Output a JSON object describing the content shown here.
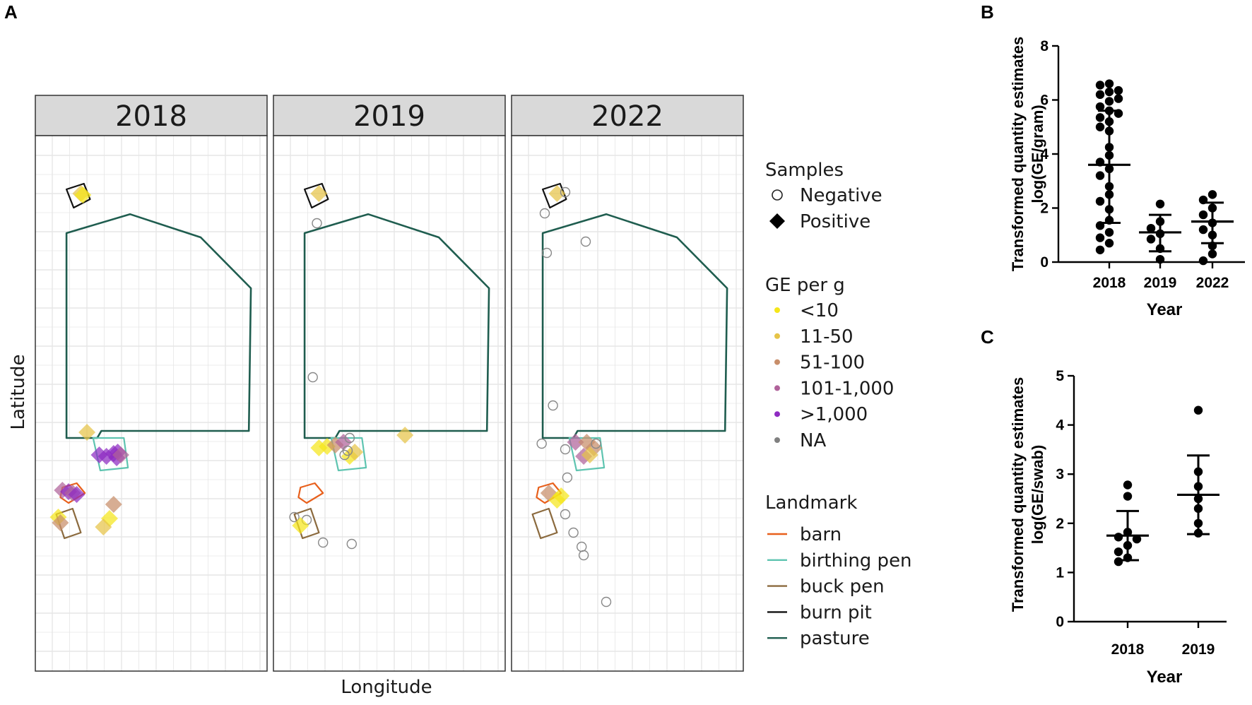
{
  "panel_letters": {
    "a": "A",
    "b": "B",
    "c": "C"
  },
  "colors": {
    "ge": {
      "<10": "#f5e61a",
      "11-50": "#e6c448",
      "51-100": "#c88e6a",
      "101-1,000": "#b0629a",
      ">1,000": "#8e2bc2",
      "NA": "#808080"
    },
    "landmark": {
      "barn": "#e8601c",
      "birthing pen": "#5ec4b0",
      "buck pen": "#8b6a3e",
      "burn pit": "#111111",
      "pasture": "#1f5d4f"
    },
    "negative": "#888888",
    "strip_bg": "#d9d9d9",
    "grid": "#e6e6e6"
  },
  "chart_data": [
    {
      "panel": "A",
      "type": "scatter",
      "subtype": "faceted map",
      "xlabel": "Longitude",
      "ylabel": "Latitude",
      "facets": [
        "2018",
        "2019",
        "2022"
      ],
      "legend_position": "right",
      "grid": true,
      "legend": {
        "samples": {
          "title": "Samples",
          "items": [
            {
              "label": "Negative",
              "shape": "open-circle"
            },
            {
              "label": "Positive",
              "shape": "filled-diamond"
            }
          ]
        },
        "ge": {
          "title": "GE per g",
          "items": [
            "<10",
            "11-50",
            "51-100",
            "101-1,000",
            ">1,000",
            "NA"
          ]
        },
        "landmark": {
          "title": "Landmark",
          "items": [
            "barn",
            "birthing pen",
            "buck pen",
            "burn pit",
            "pasture"
          ]
        }
      },
      "landmarks": {
        "pasture": [
          [
            0.09,
            0.295
          ],
          [
            0.4,
            0.228
          ],
          [
            0.745,
            0.31
          ],
          [
            0.99,
            0.49
          ],
          [
            0.98,
            0.995
          ],
          [
            0.26,
            0.995
          ],
          [
            0.24,
            1.02
          ],
          [
            0.09,
            1.02
          ]
        ],
        "birthing pen": [
          [
            0.22,
            1.02
          ],
          [
            0.37,
            1.02
          ],
          [
            0.39,
            1.125
          ],
          [
            0.255,
            1.135
          ]
        ],
        "barn": [
          [
            0.07,
            1.195
          ],
          [
            0.14,
            1.18
          ],
          [
            0.18,
            1.215
          ],
          [
            0.1,
            1.25
          ],
          [
            0.06,
            1.23
          ]
        ],
        "buck pen": [
          [
            0.04,
            1.29
          ],
          [
            0.12,
            1.27
          ],
          [
            0.16,
            1.355
          ],
          [
            0.08,
            1.375
          ]
        ],
        "burn pit": [
          [
            0.09,
            0.14
          ],
          [
            0.175,
            0.12
          ],
          [
            0.205,
            0.175
          ],
          [
            0.125,
            0.205
          ]
        ]
      },
      "points": {
        "2018": [
          {
            "lon": 0.16,
            "lat": 0.155,
            "sample": "Positive",
            "ge": "11-50"
          },
          {
            "lon": 0.17,
            "lat": 0.16,
            "sample": "Positive",
            "ge": "<10"
          },
          {
            "lon": 0.19,
            "lat": 1.0,
            "sample": "Positive",
            "ge": "11-50"
          },
          {
            "lon": 0.25,
            "lat": 1.08,
            "sample": "Positive",
            "ge": ">1,000"
          },
          {
            "lon": 0.285,
            "lat": 1.085,
            "sample": "Positive",
            "ge": ">1,000"
          },
          {
            "lon": 0.32,
            "lat": 1.075,
            "sample": "Positive",
            "ge": ">1,000"
          },
          {
            "lon": 0.34,
            "lat": 1.07,
            "sample": "Positive",
            "ge": ">1,000"
          },
          {
            "lon": 0.335,
            "lat": 1.09,
            "sample": "Positive",
            "ge": ">1,000"
          },
          {
            "lon": 0.355,
            "lat": 1.08,
            "sample": "Positive",
            "ge": "101-1,000"
          },
          {
            "lon": 0.07,
            "lat": 1.205,
            "sample": "Positive",
            "ge": "101-1,000"
          },
          {
            "lon": 0.1,
            "lat": 1.21,
            "sample": "Positive",
            "ge": ">1,000"
          },
          {
            "lon": 0.12,
            "lat": 1.215,
            "sample": "Positive",
            "ge": "101-1,000"
          },
          {
            "lon": 0.14,
            "lat": 1.22,
            "sample": "Positive",
            "ge": ">1,000"
          },
          {
            "lon": 0.05,
            "lat": 1.3,
            "sample": "Positive",
            "ge": "<10"
          },
          {
            "lon": 0.06,
            "lat": 1.32,
            "sample": "Positive",
            "ge": "51-100"
          },
          {
            "lon": 0.3,
            "lat": 1.305,
            "sample": "Positive",
            "ge": "<10"
          },
          {
            "lon": 0.27,
            "lat": 1.335,
            "sample": "Positive",
            "ge": "11-50"
          },
          {
            "lon": 0.32,
            "lat": 1.255,
            "sample": "Positive",
            "ge": "51-100"
          }
        ],
        "2019": [
          {
            "lon": 0.16,
            "lat": 0.155,
            "sample": "Positive",
            "ge": "11-50"
          },
          {
            "lon": 0.15,
            "lat": 0.26,
            "sample": "Negative",
            "ge": "NA"
          },
          {
            "lon": 0.13,
            "lat": 0.805,
            "sample": "Negative",
            "ge": "NA"
          },
          {
            "lon": 0.58,
            "lat": 1.01,
            "sample": "Positive",
            "ge": "11-50"
          },
          {
            "lon": 0.16,
            "lat": 1.055,
            "sample": "Positive",
            "ge": "<10"
          },
          {
            "lon": 0.2,
            "lat": 1.05,
            "sample": "Positive",
            "ge": "<10"
          },
          {
            "lon": 0.24,
            "lat": 1.045,
            "sample": "Positive",
            "ge": "51-100"
          },
          {
            "lon": 0.28,
            "lat": 1.035,
            "sample": "Positive",
            "ge": "101-1,000"
          },
          {
            "lon": 0.31,
            "lat": 1.085,
            "sample": "Positive",
            "ge": "<10"
          },
          {
            "lon": 0.335,
            "lat": 1.07,
            "sample": "Positive",
            "ge": "11-50"
          },
          {
            "lon": 0.3,
            "lat": 1.065,
            "sample": "Negative",
            "ge": "NA"
          },
          {
            "lon": 0.31,
            "lat": 1.02,
            "sample": "Negative",
            "ge": "NA"
          },
          {
            "lon": 0.285,
            "lat": 1.08,
            "sample": "Negative",
            "ge": "NA"
          },
          {
            "lon": 0.04,
            "lat": 1.3,
            "sample": "Negative",
            "ge": "NA"
          },
          {
            "lon": 0.1,
            "lat": 1.31,
            "sample": "Negative",
            "ge": "NA"
          },
          {
            "lon": 0.07,
            "lat": 1.33,
            "sample": "Positive",
            "ge": "<10"
          },
          {
            "lon": 0.18,
            "lat": 1.39,
            "sample": "Negative",
            "ge": "NA"
          },
          {
            "lon": 0.32,
            "lat": 1.395,
            "sample": "Negative",
            "ge": "NA"
          }
        ],
        "2022": [
          {
            "lon": 0.16,
            "lat": 0.155,
            "sample": "Positive",
            "ge": "11-50"
          },
          {
            "lon": 0.2,
            "lat": 0.15,
            "sample": "Negative",
            "ge": "NA"
          },
          {
            "lon": 0.1,
            "lat": 0.225,
            "sample": "Negative",
            "ge": "NA"
          },
          {
            "lon": 0.3,
            "lat": 0.325,
            "sample": "Negative",
            "ge": "NA"
          },
          {
            "lon": 0.11,
            "lat": 0.365,
            "sample": "Negative",
            "ge": "NA"
          },
          {
            "lon": 0.14,
            "lat": 0.905,
            "sample": "Negative",
            "ge": "NA"
          },
          {
            "lon": 0.085,
            "lat": 1.04,
            "sample": "Negative",
            "ge": "NA"
          },
          {
            "lon": 0.25,
            "lat": 1.035,
            "sample": "Positive",
            "ge": "101-1,000"
          },
          {
            "lon": 0.305,
            "lat": 1.035,
            "sample": "Positive",
            "ge": "51-100"
          },
          {
            "lon": 0.34,
            "lat": 1.055,
            "sample": "Positive",
            "ge": "51-100"
          },
          {
            "lon": 0.35,
            "lat": 1.04,
            "sample": "Negative",
            "ge": "NA"
          },
          {
            "lon": 0.2,
            "lat": 1.06,
            "sample": "Negative",
            "ge": "NA"
          },
          {
            "lon": 0.29,
            "lat": 1.085,
            "sample": "Positive",
            "ge": "101-1,000"
          },
          {
            "lon": 0.32,
            "lat": 1.08,
            "sample": "Positive",
            "ge": "11-50"
          },
          {
            "lon": 0.21,
            "lat": 1.16,
            "sample": "Negative",
            "ge": "NA"
          },
          {
            "lon": 0.12,
            "lat": 1.215,
            "sample": "Positive",
            "ge": "51-100"
          },
          {
            "lon": 0.16,
            "lat": 1.24,
            "sample": "Positive",
            "ge": "<10"
          },
          {
            "lon": 0.18,
            "lat": 1.225,
            "sample": "Positive",
            "ge": "<10"
          },
          {
            "lon": 0.2,
            "lat": 1.29,
            "sample": "Negative",
            "ge": "NA"
          },
          {
            "lon": 0.24,
            "lat": 1.355,
            "sample": "Negative",
            "ge": "NA"
          },
          {
            "lon": 0.28,
            "lat": 1.405,
            "sample": "Negative",
            "ge": "NA"
          },
          {
            "lon": 0.29,
            "lat": 1.435,
            "sample": "Negative",
            "ge": "NA"
          },
          {
            "lon": 0.4,
            "lat": 1.6,
            "sample": "Negative",
            "ge": "NA"
          }
        ]
      }
    },
    {
      "panel": "B",
      "type": "scatter",
      "subtype": "dot plot with mean and SD",
      "xlabel": "Year",
      "ylabel": "Transformed quantity estimates\nlog(GE/gram)",
      "categories": [
        "2018",
        "2019",
        "2022"
      ],
      "ylim": [
        0,
        8
      ],
      "yticks": [
        0,
        2,
        4,
        6,
        8
      ],
      "series": [
        {
          "category": "2018",
          "mean": 3.6,
          "sd_low": 1.45,
          "sd_high": 5.6,
          "values": [
            6.6,
            6.55,
            6.35,
            6.3,
            6.2,
            6.05,
            5.95,
            5.75,
            5.6,
            5.5,
            5.35,
            5.2,
            5.0,
            4.85,
            4.25,
            3.95,
            3.7,
            3.45,
            3.2,
            2.8,
            2.5,
            2.25,
            1.95,
            1.55,
            1.35,
            1.1,
            0.9,
            0.7,
            0.45
          ]
        },
        {
          "category": "2019",
          "mean": 1.1,
          "sd_low": 0.4,
          "sd_high": 1.75,
          "values": [
            2.15,
            1.5,
            1.25,
            1.05,
            0.85,
            0.5,
            0.1
          ]
        },
        {
          "category": "2022",
          "mean": 1.5,
          "sd_low": 0.7,
          "sd_high": 2.2,
          "values": [
            2.5,
            2.3,
            2.0,
            1.75,
            1.45,
            1.2,
            1.0,
            0.6,
            0.3,
            0.05
          ]
        }
      ]
    },
    {
      "panel": "C",
      "type": "scatter",
      "subtype": "dot plot with mean and SD",
      "xlabel": "Year",
      "ylabel": "Transformed quantity estimates\nlog(GE/swab)",
      "categories": [
        "2018",
        "2019"
      ],
      "ylim": [
        0,
        5
      ],
      "yticks": [
        0,
        1,
        2,
        3,
        4,
        5
      ],
      "series": [
        {
          "category": "2018",
          "mean": 1.75,
          "sd_low": 1.25,
          "sd_high": 2.25,
          "values": [
            2.78,
            2.55,
            1.82,
            1.72,
            1.68,
            1.55,
            1.42,
            1.3,
            1.22
          ]
        },
        {
          "category": "2019",
          "mean": 2.58,
          "sd_low": 1.78,
          "sd_high": 3.38,
          "values": [
            4.3,
            3.05,
            2.75,
            2.5,
            2.3,
            2.0,
            1.8
          ]
        }
      ]
    }
  ]
}
